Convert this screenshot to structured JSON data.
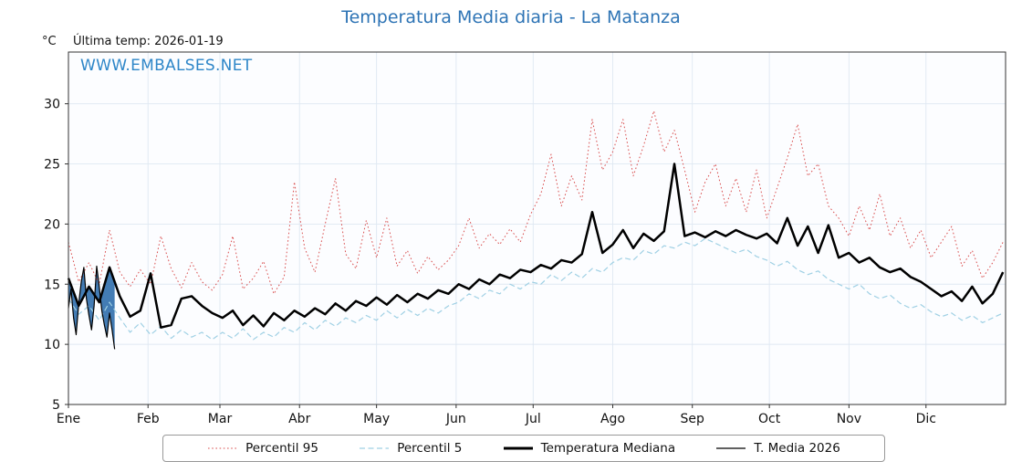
{
  "title": "Temperatura Media diaria - La Matanza",
  "y_unit": "°C",
  "subtitle": "Última temp: 2026-01-19",
  "watermark": "WWW.EMBALSES.NET",
  "colors": {
    "title_blue": "#2e74b5",
    "watermark_blue": "#2e86c8",
    "p95_red": "#d94f4f",
    "p5_cyan": "#9fd0e4",
    "median_black": "#000000",
    "fill_blue": "#2f6eac",
    "grid": "#dfe8f2"
  },
  "chart_data": {
    "type": "line",
    "title": "Temperatura Media diaria - La Matanza",
    "xlabel": "",
    "ylabel": "°C",
    "ylim": [
      5,
      34.3
    ],
    "xlim_days": [
      0,
      365
    ],
    "yticks": [
      5,
      10,
      15,
      20,
      25,
      30
    ],
    "months": [
      "Ene",
      "Feb",
      "Mar",
      "Abr",
      "May",
      "Jun",
      "Jul",
      "Ago",
      "Sep",
      "Oct",
      "Nov",
      "Dic"
    ],
    "month_start_days": [
      0,
      31,
      59,
      90,
      120,
      151,
      181,
      212,
      243,
      273,
      304,
      334
    ],
    "grid": true,
    "legend_position": "bottom",
    "x": [
      0,
      4,
      8,
      12,
      16,
      20,
      24,
      28,
      32,
      36,
      40,
      44,
      48,
      52,
      56,
      60,
      64,
      68,
      72,
      76,
      80,
      84,
      88,
      92,
      96,
      100,
      104,
      108,
      112,
      116,
      120,
      124,
      128,
      132,
      136,
      140,
      144,
      148,
      152,
      156,
      160,
      164,
      168,
      172,
      176,
      180,
      184,
      188,
      192,
      196,
      200,
      204,
      208,
      212,
      216,
      220,
      224,
      228,
      232,
      236,
      240,
      244,
      248,
      252,
      256,
      260,
      264,
      268,
      272,
      276,
      280,
      284,
      288,
      292,
      296,
      300,
      304,
      308,
      312,
      316,
      320,
      324,
      328,
      332,
      336,
      340,
      344,
      348,
      352,
      356,
      360,
      364
    ],
    "series": [
      {
        "name": "Percentil 95",
        "style": "dotted",
        "color": "#d94f4f",
        "width": 1,
        "y": [
          18.5,
          15.2,
          16.8,
          15.0,
          19.5,
          16.0,
          14.8,
          16.2,
          15.0,
          19.0,
          16.3,
          14.7,
          16.8,
          15.2,
          14.5,
          15.8,
          19.0,
          14.6,
          15.5,
          16.9,
          14.2,
          15.6,
          23.5,
          18.0,
          16.0,
          20.0,
          23.8,
          17.5,
          16.3,
          20.3,
          17.2,
          20.5,
          16.5,
          17.8,
          15.9,
          17.3,
          16.2,
          17.0,
          18.2,
          20.5,
          18.0,
          19.2,
          18.3,
          19.6,
          18.5,
          20.8,
          22.5,
          25.8,
          21.5,
          24.0,
          22.0,
          28.7,
          24.5,
          26.0,
          28.7,
          24.0,
          26.5,
          29.4,
          26.0,
          27.8,
          24.5,
          21.0,
          23.5,
          25.0,
          21.5,
          23.8,
          21.0,
          24.5,
          20.5,
          23.0,
          25.5,
          28.3,
          24.0,
          25.0,
          21.5,
          20.5,
          19.0,
          21.5,
          19.5,
          22.5,
          19.0,
          20.5,
          18.0,
          19.5,
          17.2,
          18.5,
          19.8,
          16.5,
          17.8,
          15.5,
          16.8,
          18.5
        ]
      },
      {
        "name": "Percentil 5",
        "style": "dashed",
        "color": "#9fd0e4",
        "width": 1.2,
        "y": [
          13.8,
          12.5,
          13.2,
          12.0,
          13.5,
          12.2,
          11.0,
          11.8,
          10.8,
          11.5,
          10.5,
          11.2,
          10.6,
          11.0,
          10.4,
          11.0,
          10.5,
          11.3,
          10.4,
          11.0,
          10.6,
          11.4,
          11.0,
          11.8,
          11.2,
          12.0,
          11.5,
          12.2,
          11.8,
          12.4,
          12.0,
          12.8,
          12.2,
          12.9,
          12.4,
          13.0,
          12.6,
          13.2,
          13.5,
          14.2,
          13.8,
          14.5,
          14.2,
          15.0,
          14.6,
          15.2,
          15.0,
          15.8,
          15.3,
          16.0,
          15.5,
          16.3,
          16.0,
          16.8,
          17.2,
          17.0,
          17.8,
          17.5,
          18.2,
          18.0,
          18.5,
          18.2,
          18.8,
          18.4,
          18.0,
          17.6,
          17.9,
          17.3,
          17.0,
          16.5,
          16.9,
          16.2,
          15.8,
          16.1,
          15.4,
          15.0,
          14.6,
          15.0,
          14.2,
          13.8,
          14.1,
          13.4,
          13.0,
          13.3,
          12.7,
          12.3,
          12.6,
          12.0,
          12.4,
          11.8,
          12.2,
          12.6
        ]
      },
      {
        "name": "Temperatura Mediana",
        "style": "solid",
        "color": "#000000",
        "width": 2.5,
        "y": [
          15.5,
          13.2,
          14.8,
          13.5,
          16.4,
          14.0,
          12.3,
          12.8,
          15.9,
          11.4,
          11.6,
          13.8,
          14.0,
          13.2,
          12.6,
          12.2,
          12.8,
          11.6,
          12.4,
          11.5,
          12.6,
          12.0,
          12.8,
          12.3,
          13.0,
          12.5,
          13.4,
          12.8,
          13.6,
          13.2,
          13.9,
          13.3,
          14.1,
          13.5,
          14.2,
          13.8,
          14.5,
          14.2,
          15.0,
          14.6,
          15.4,
          15.0,
          15.8,
          15.5,
          16.2,
          16.0,
          16.6,
          16.3,
          17.0,
          16.8,
          17.5,
          21.0,
          17.6,
          18.3,
          19.5,
          18.0,
          19.2,
          18.6,
          19.4,
          25.0,
          19.0,
          19.3,
          18.9,
          19.4,
          19.0,
          19.5,
          19.1,
          18.8,
          19.2,
          18.4,
          20.5,
          18.2,
          19.8,
          17.6,
          19.9,
          17.2,
          17.6,
          16.8,
          17.2,
          16.4,
          16.0,
          16.3,
          15.6,
          15.2,
          14.6,
          14.0,
          14.4,
          13.6,
          14.8,
          13.4,
          14.2,
          16.0
        ]
      },
      {
        "name": "T. Media 2026",
        "style": "solid",
        "color": "#000000",
        "width": 1.2,
        "x_own": [
          0,
          1,
          2,
          3,
          4,
          5,
          6,
          7,
          8,
          9,
          10,
          11,
          12,
          13,
          14,
          15,
          16,
          17,
          18
        ],
        "y": [
          13.0,
          14.6,
          12.2,
          10.8,
          13.4,
          15.2,
          16.4,
          13.8,
          12.4,
          11.2,
          13.2,
          16.5,
          14.8,
          12.8,
          11.6,
          10.6,
          12.6,
          11.2,
          9.6
        ],
        "fill_to_series": "Temperatura Mediana",
        "fill_color": "#2f6eac",
        "fill_opacity": 0.9
      }
    ]
  }
}
